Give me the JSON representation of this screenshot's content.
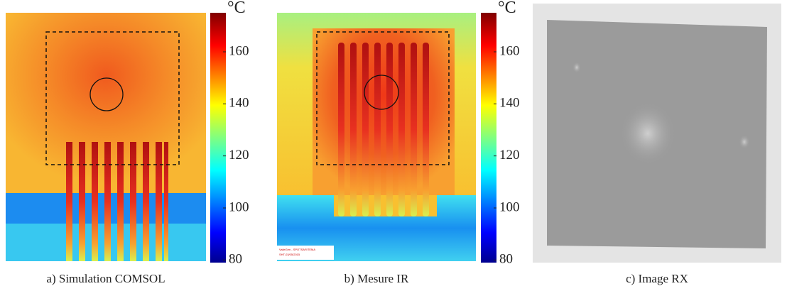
{
  "panels": [
    {
      "caption": "a) Simulation COMSOL",
      "colorbar": {
        "unit": "°C",
        "clim": [
          79,
          175
        ],
        "ticks": [
          80,
          100,
          120,
          140,
          160
        ]
      }
    },
    {
      "caption": "b) Mesure IR",
      "stamp": [
        "ValleGen - SPOTSAR/TEMA",
        "SHT-03/05/2015"
      ],
      "colorbar": {
        "unit": "°C",
        "clim": [
          79,
          175
        ],
        "ticks": [
          80,
          100,
          120,
          140,
          160
        ]
      }
    },
    {
      "caption": "c) Image RX"
    }
  ]
}
